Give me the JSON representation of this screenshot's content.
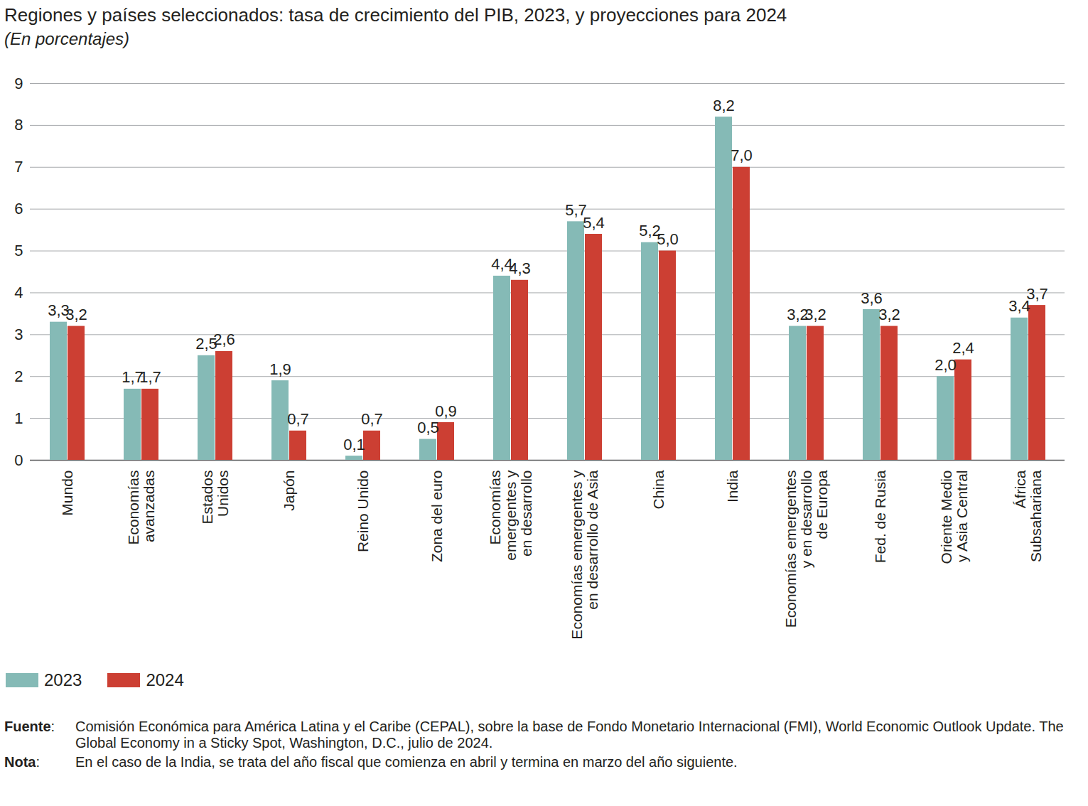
{
  "chart_data": {
    "type": "bar",
    "title": "Regiones y países seleccionados: tasa de crecimiento del PIB, 2023, y proyecciones para 2024",
    "subtitle": "(En porcentajes)",
    "categories": [
      "Mundo",
      "Economías\navanzadas",
      "Estados\nUnidos",
      "Japón",
      "Reino Unido",
      "Zona del euro",
      "Economías\nemergentes y\nen desarrollo",
      "Economías emergentes y\nen desarrollo de Asia",
      "China",
      "India",
      "Economías emergentes\ny en desarrollo\nde Europa",
      "Fed. de Rusia",
      "Oriente Medio\ny Asia Central",
      "África\nSubsahariana"
    ],
    "series": [
      {
        "name": "2023",
        "color": "#85bab6",
        "values": [
          3.3,
          1.7,
          2.5,
          1.9,
          0.1,
          0.5,
          4.4,
          5.7,
          5.2,
          8.2,
          3.2,
          3.6,
          2.0,
          3.4
        ],
        "value_labels": [
          "3,3",
          "1,7",
          "2,5",
          "1,9",
          "0,1",
          "0,5",
          "4,4",
          "5,7",
          "5,2",
          "8,2",
          "3,2",
          "3,6",
          "2,0",
          "3,4"
        ]
      },
      {
        "name": "2024",
        "color": "#cc3f33",
        "values": [
          3.2,
          1.7,
          2.6,
          0.7,
          0.7,
          0.9,
          4.3,
          5.4,
          5.0,
          7.0,
          3.2,
          3.2,
          2.4,
          3.7
        ],
        "value_labels": [
          "3,2",
          "1,7",
          "2,6",
          "0,7",
          "0,7",
          "0,9",
          "4,3",
          "5,4",
          "5,0",
          "7,0",
          "3,2",
          "3,2",
          "2,4",
          "3,7"
        ]
      }
    ],
    "ylim": [
      0,
      9
    ],
    "yticks": [
      0,
      1,
      2,
      3,
      4,
      5,
      6,
      7,
      8,
      9
    ],
    "grid": true,
    "data_labels": true,
    "legend": "bottom-left",
    "source_label": "Fuente",
    "source": "Comisión Económica para América Latina y el Caribe (CEPAL), sobre la base de Fondo Monetario Internacional (FMI), World Economic Outlook Update. The Global Economy in a Sticky Spot, Washington, D.C., julio de 2024.",
    "note_label": "Nota",
    "note": "En el caso de la India, se trata del año fiscal que comienza en abril y termina en marzo del año siguiente."
  }
}
